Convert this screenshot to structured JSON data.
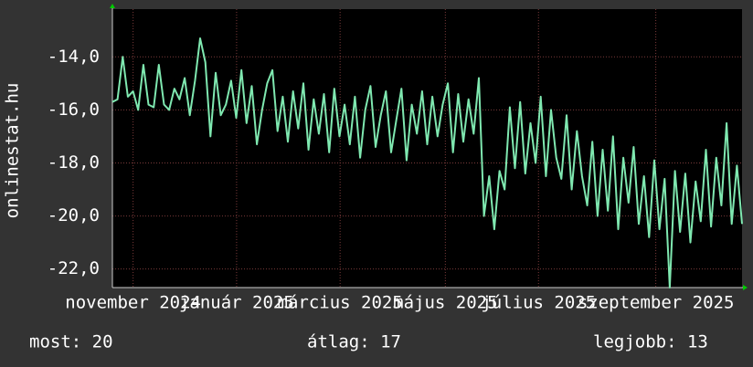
{
  "chart_data": {
    "type": "line",
    "y_label": "onlinestat.hu",
    "color": "#7fe8b0",
    "values": [
      -15.7,
      -15.6,
      -14.0,
      -15.5,
      -15.3,
      -16.0,
      -14.3,
      -15.8,
      -15.9,
      -14.3,
      -15.8,
      -16.0,
      -15.2,
      -15.6,
      -14.8,
      -16.2,
      -14.9,
      -13.3,
      -14.2,
      -17.0,
      -14.6,
      -16.2,
      -15.8,
      -14.9,
      -16.3,
      -14.5,
      -16.5,
      -15.1,
      -17.3,
      -16.0,
      -15.0,
      -14.5,
      -16.8,
      -15.5,
      -17.2,
      -15.3,
      -16.7,
      -15.0,
      -17.5,
      -15.6,
      -16.9,
      -15.4,
      -17.6,
      -15.2,
      -17.0,
      -15.8,
      -17.3,
      -15.5,
      -17.8,
      -16.0,
      -15.1,
      -17.4,
      -16.2,
      -15.3,
      -17.6,
      -16.4,
      -15.2,
      -17.9,
      -15.8,
      -16.9,
      -15.3,
      -17.3,
      -15.5,
      -17.0,
      -15.8,
      -15.0,
      -17.6,
      -15.4,
      -17.2,
      -15.6,
      -16.9,
      -14.8,
      -20.0,
      -18.5,
      -20.5,
      -18.3,
      -19.0,
      -15.9,
      -18.2,
      -15.7,
      -18.4,
      -16.5,
      -18.0,
      -15.5,
      -18.5,
      -16.0,
      -17.8,
      -18.6,
      -16.2,
      -19.0,
      -16.8,
      -18.5,
      -19.6,
      -17.2,
      -20.0,
      -17.5,
      -19.8,
      -17.0,
      -20.5,
      -17.8,
      -19.5,
      -17.4,
      -20.3,
      -18.5,
      -20.8,
      -17.9,
      -20.5,
      -18.6,
      -22.7,
      -18.3,
      -20.6,
      -18.4,
      -21.0,
      -18.7,
      -20.2,
      -17.5,
      -20.4,
      -17.8,
      -19.6,
      -16.5,
      -20.3,
      -18.1,
      -20.3
    ],
    "ylim": [
      -22.7,
      -12.2
    ],
    "yticks": [
      {
        "value": -22,
        "label": "-22,0"
      },
      {
        "value": -20,
        "label": "-20,0"
      },
      {
        "value": -18,
        "label": "-18,0"
      },
      {
        "value": -16,
        "label": "-16,0"
      },
      {
        "value": -14,
        "label": "-14,0"
      }
    ],
    "xlim": [
      0,
      365
    ],
    "xticks": [
      {
        "value": 12,
        "label": "november 2024"
      },
      {
        "value": 72,
        "label": "január 2025"
      },
      {
        "value": 132,
        "label": "március 2025"
      },
      {
        "value": 193,
        "label": "május 2025"
      },
      {
        "value": 247,
        "label": "július 2025"
      },
      {
        "value": 315,
        "label": "szeptember 2025"
      }
    ],
    "grid": true
  },
  "footer": [
    "most: 20",
    "átlag: 17",
    "legjobb: 13"
  ]
}
